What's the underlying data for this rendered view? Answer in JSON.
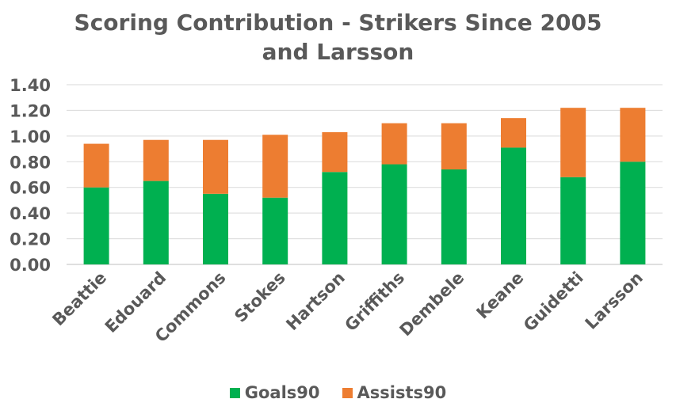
{
  "chart_data": {
    "type": "bar",
    "stacked": true,
    "title_lines": [
      "Scoring Contribution - Strikers Since 2005",
      "and Larsson"
    ],
    "categories": [
      "Beattie",
      "Edouard",
      "Commons",
      "Stokes",
      "Hartson",
      "Griffiths",
      "Dembele",
      "Keane",
      "Guidetti",
      "Larsson"
    ],
    "series": [
      {
        "name": "Goals90",
        "color": "#00b050",
        "values": [
          0.6,
          0.65,
          0.55,
          0.52,
          0.72,
          0.78,
          0.74,
          0.91,
          0.68,
          0.8
        ]
      },
      {
        "name": "Assists90",
        "color": "#ed7d31",
        "values": [
          0.34,
          0.32,
          0.42,
          0.49,
          0.31,
          0.32,
          0.36,
          0.23,
          0.54,
          0.42
        ]
      }
    ],
    "ylim": [
      0,
      1.4
    ],
    "yticks": [
      "0.00",
      "0.20",
      "0.40",
      "0.60",
      "0.80",
      "1.00",
      "1.20",
      "1.40"
    ],
    "grid": true,
    "legend_position": "bottom"
  }
}
